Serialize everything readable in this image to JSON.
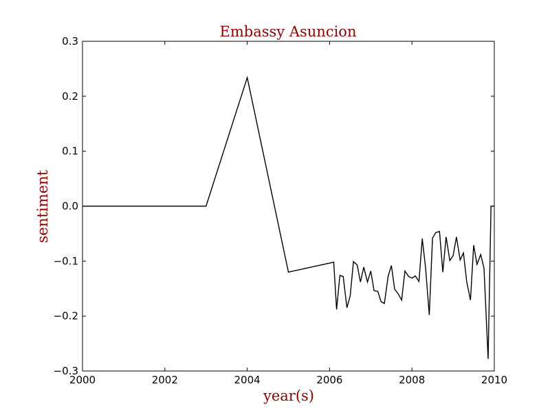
{
  "chart_data": {
    "type": "line",
    "title": "Embassy Asuncion",
    "xlabel": "year(s)",
    "ylabel": "sentiment",
    "xlim": [
      2000,
      2010
    ],
    "ylim": [
      -0.3,
      0.3
    ],
    "xticks": [
      2000,
      2002,
      2004,
      2006,
      2008,
      2010
    ],
    "xtick_labels": [
      "2000",
      "2002",
      "2004",
      "2006",
      "2008",
      "2010"
    ],
    "yticks": [
      -0.3,
      -0.2,
      -0.1,
      0.0,
      0.1,
      0.2,
      0.3
    ],
    "ytick_labels": [
      "−0.3",
      "−0.2",
      "−0.1",
      "0.0",
      "0.1",
      "0.2",
      "0.3"
    ],
    "grid": false,
    "line_color": "#000000",
    "title_color": "#8b0000",
    "series": [
      {
        "x": [
          2000.0,
          2003.0,
          2004.0,
          2005.0,
          2006.1,
          2006.17,
          2006.25,
          2006.33,
          2006.42,
          2006.5,
          2006.58,
          2006.67,
          2006.75,
          2006.83,
          2006.92,
          2007.0,
          2007.08,
          2007.17,
          2007.25,
          2007.33,
          2007.42,
          2007.5,
          2007.58,
          2007.67,
          2007.75,
          2007.83,
          2007.92,
          2008.0,
          2008.08,
          2008.17,
          2008.25,
          2008.33,
          2008.42,
          2008.5,
          2008.58,
          2008.67,
          2008.75,
          2008.83,
          2008.92,
          2009.0,
          2009.08,
          2009.17,
          2009.25,
          2009.33,
          2009.42,
          2009.5,
          2009.58,
          2009.67,
          2009.75,
          2009.85,
          2009.92,
          2010.0
        ],
        "y": [
          0.0,
          0.0,
          0.234,
          -0.12,
          -0.102,
          -0.188,
          -0.126,
          -0.128,
          -0.185,
          -0.163,
          -0.101,
          -0.107,
          -0.138,
          -0.111,
          -0.138,
          -0.118,
          -0.154,
          -0.155,
          -0.174,
          -0.177,
          -0.128,
          -0.108,
          -0.151,
          -0.16,
          -0.171,
          -0.118,
          -0.128,
          -0.131,
          -0.127,
          -0.137,
          -0.059,
          -0.112,
          -0.198,
          -0.058,
          -0.048,
          -0.046,
          -0.12,
          -0.056,
          -0.099,
          -0.09,
          -0.056,
          -0.098,
          -0.085,
          -0.138,
          -0.171,
          -0.071,
          -0.106,
          -0.088,
          -0.113,
          -0.278,
          0.0,
          0.0
        ]
      }
    ]
  }
}
